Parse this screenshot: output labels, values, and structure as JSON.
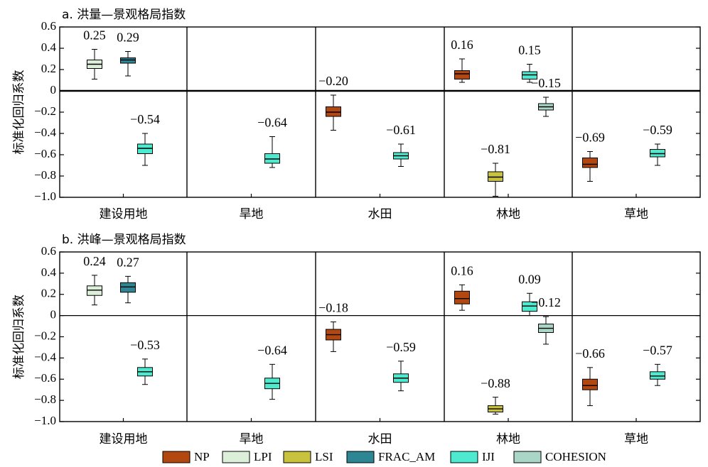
{
  "chart_data": [
    {
      "type": "box",
      "title": "a. 洪量—景观格局指数",
      "ylabel": "标准化回归系数",
      "ylim": [
        -1.0,
        0.6
      ],
      "yticks": [
        {
          "v": 0.6,
          "t": "0.6"
        },
        {
          "v": 0.4,
          "t": "0.4"
        },
        {
          "v": 0.2,
          "t": "0.2"
        },
        {
          "v": 0,
          "t": "0"
        },
        {
          "v": -0.2,
          "t": "−0.2"
        },
        {
          "v": -0.4,
          "t": "−0.4"
        },
        {
          "v": -0.6,
          "t": "−0.6"
        },
        {
          "v": -0.8,
          "t": "−0.8"
        },
        {
          "v": -1.0,
          "t": "−1.0"
        }
      ],
      "categories": [
        "建设用地",
        "旱地",
        "水田",
        "林地",
        "草地"
      ],
      "boxes": [
        {
          "cat": 0,
          "series": "LPI",
          "slot": 1,
          "median": 0.25,
          "q1": 0.21,
          "q3": 0.29,
          "min": 0.11,
          "max": 0.39,
          "label": "0.25"
        },
        {
          "cat": 0,
          "series": "FRAC_AM",
          "slot": 3,
          "median": 0.29,
          "q1": 0.26,
          "q3": 0.31,
          "min": 0.14,
          "max": 0.37,
          "label": "0.29"
        },
        {
          "cat": 0,
          "series": "IJI",
          "slot": 4,
          "median": -0.54,
          "q1": -0.59,
          "q3": -0.5,
          "min": -0.7,
          "max": -0.4,
          "label": "−0.54"
        },
        {
          "cat": 1,
          "series": "IJI",
          "slot": 4,
          "median": -0.64,
          "q1": -0.68,
          "q3": -0.59,
          "min": -0.72,
          "max": -0.43,
          "label": "−0.64"
        },
        {
          "cat": 2,
          "series": "NP",
          "slot": 0,
          "median": -0.2,
          "q1": -0.24,
          "q3": -0.15,
          "min": -0.37,
          "max": -0.04,
          "label": "−0.20"
        },
        {
          "cat": 2,
          "series": "IJI",
          "slot": 4,
          "median": -0.61,
          "q1": -0.64,
          "q3": -0.58,
          "min": -0.71,
          "max": -0.5,
          "label": "−0.61"
        },
        {
          "cat": 3,
          "series": "NP",
          "slot": 0,
          "median": 0.16,
          "q1": 0.11,
          "q3": 0.19,
          "min": 0.08,
          "max": 0.3,
          "label": "0.16"
        },
        {
          "cat": 3,
          "series": "LSI",
          "slot": 2,
          "median": -0.81,
          "q1": -0.85,
          "q3": -0.76,
          "min": -0.99,
          "max": -0.68,
          "label": "−0.81"
        },
        {
          "cat": 3,
          "series": "IJI",
          "slot": 4,
          "median": 0.15,
          "q1": 0.11,
          "q3": 0.18,
          "min": 0.08,
          "max": 0.25,
          "label": "0.15"
        },
        {
          "cat": 3,
          "series": "COHESION",
          "slot": 5,
          "median": -0.15,
          "q1": -0.18,
          "q3": -0.12,
          "min": -0.24,
          "max": -0.06,
          "label": "−0.15"
        },
        {
          "cat": 4,
          "series": "NP",
          "slot": 0,
          "median": -0.69,
          "q1": -0.72,
          "q3": -0.63,
          "min": -0.85,
          "max": -0.57,
          "label": "−0.69"
        },
        {
          "cat": 4,
          "series": "IJI",
          "slot": 4,
          "median": -0.59,
          "q1": -0.62,
          "q3": -0.55,
          "min": -0.7,
          "max": -0.5,
          "label": "−0.59"
        }
      ]
    },
    {
      "type": "box",
      "title": "b. 洪峰—景观格局指数",
      "ylabel": "标准化回归系数",
      "ylim": [
        -1.0,
        0.6
      ],
      "yticks": [
        {
          "v": 0.6,
          "t": "0.6"
        },
        {
          "v": 0.4,
          "t": "0.4"
        },
        {
          "v": 0.2,
          "t": "0.2"
        },
        {
          "v": 0,
          "t": "0"
        },
        {
          "v": -0.2,
          "t": "−0.2"
        },
        {
          "v": -0.4,
          "t": "−0.4"
        },
        {
          "v": -0.6,
          "t": "−0.6"
        },
        {
          "v": -0.8,
          "t": "−0.8"
        },
        {
          "v": -1.0,
          "t": "−1.0"
        }
      ],
      "categories": [
        "建设用地",
        "旱地",
        "水田",
        "林地",
        "草地"
      ],
      "boxes": [
        {
          "cat": 0,
          "series": "LPI",
          "slot": 1,
          "median": 0.24,
          "q1": 0.19,
          "q3": 0.28,
          "min": 0.1,
          "max": 0.38,
          "label": "0.24"
        },
        {
          "cat": 0,
          "series": "FRAC_AM",
          "slot": 3,
          "median": 0.27,
          "q1": 0.22,
          "q3": 0.31,
          "min": 0.12,
          "max": 0.37,
          "label": "0.27"
        },
        {
          "cat": 0,
          "series": "IJI",
          "slot": 4,
          "median": -0.53,
          "q1": -0.57,
          "q3": -0.49,
          "min": -0.65,
          "max": -0.41,
          "label": "−0.53"
        },
        {
          "cat": 1,
          "series": "IJI",
          "slot": 4,
          "median": -0.64,
          "q1": -0.69,
          "q3": -0.59,
          "min": -0.79,
          "max": -0.46,
          "label": "−0.64"
        },
        {
          "cat": 2,
          "series": "NP",
          "slot": 0,
          "median": -0.18,
          "q1": -0.23,
          "q3": -0.13,
          "min": -0.34,
          "max": -0.06,
          "label": "−0.18"
        },
        {
          "cat": 2,
          "series": "IJI",
          "slot": 4,
          "median": -0.59,
          "q1": -0.63,
          "q3": -0.55,
          "min": -0.71,
          "max": -0.43,
          "label": "−0.59"
        },
        {
          "cat": 3,
          "series": "NP",
          "slot": 0,
          "median": 0.16,
          "q1": 0.11,
          "q3": 0.23,
          "min": 0.05,
          "max": 0.29,
          "label": "0.16"
        },
        {
          "cat": 3,
          "series": "LSI",
          "slot": 2,
          "median": -0.88,
          "q1": -0.91,
          "q3": -0.85,
          "min": -0.93,
          "max": -0.77,
          "label": "−0.88"
        },
        {
          "cat": 3,
          "series": "IJI",
          "slot": 4,
          "median": 0.09,
          "q1": 0.04,
          "q3": 0.13,
          "min": 0.0,
          "max": 0.21,
          "label": "0.09"
        },
        {
          "cat": 3,
          "series": "COHESION",
          "slot": 5,
          "median": -0.12,
          "q1": -0.16,
          "q3": -0.08,
          "min": -0.27,
          "max": -0.01,
          "label": "−0.12"
        },
        {
          "cat": 4,
          "series": "NP",
          "slot": 0,
          "median": -0.66,
          "q1": -0.7,
          "q3": -0.6,
          "min": -0.85,
          "max": -0.49,
          "label": "−0.66"
        },
        {
          "cat": 4,
          "series": "IJI",
          "slot": 4,
          "median": -0.57,
          "q1": -0.6,
          "q3": -0.53,
          "min": -0.66,
          "max": -0.46,
          "label": "−0.57"
        }
      ]
    }
  ],
  "legend": [
    {
      "name": "NP",
      "color": "#B34710"
    },
    {
      "name": "LPI",
      "color": "#DCEFD8"
    },
    {
      "name": "LSI",
      "color": "#C9C23C"
    },
    {
      "name": "FRAC_AM",
      "color": "#2E8593"
    },
    {
      "name": "IJI",
      "color": "#4DEAD0"
    },
    {
      "name": "COHESION",
      "color": "#A9D6C6"
    }
  ]
}
